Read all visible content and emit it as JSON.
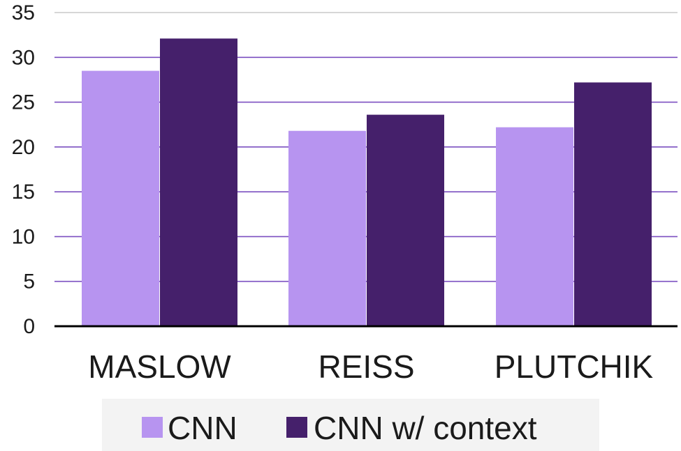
{
  "chart_data": {
    "type": "bar",
    "title": "",
    "xlabel": "",
    "ylabel": "",
    "categories": [
      "MASLOW",
      "REISS",
      "PLUTCHIK"
    ],
    "series": [
      {
        "name": "CNN",
        "values": [
          28.5,
          21.8,
          22.2
        ]
      },
      {
        "name": "CNN w/ context",
        "values": [
          32.1,
          23.6,
          27.2
        ]
      }
    ],
    "ylim": [
      0,
      35
    ],
    "yticks": [
      0,
      5,
      10,
      15,
      20,
      25,
      30,
      35
    ],
    "grid": true,
    "legend_position": "bottom"
  },
  "colors": {
    "series": [
      "#b794f0",
      "#45206b"
    ],
    "grid": "#7b4fc0",
    "grid_top": "#c9c9c9",
    "axis": "#000000",
    "legend_bg": "#f3f3f3"
  }
}
